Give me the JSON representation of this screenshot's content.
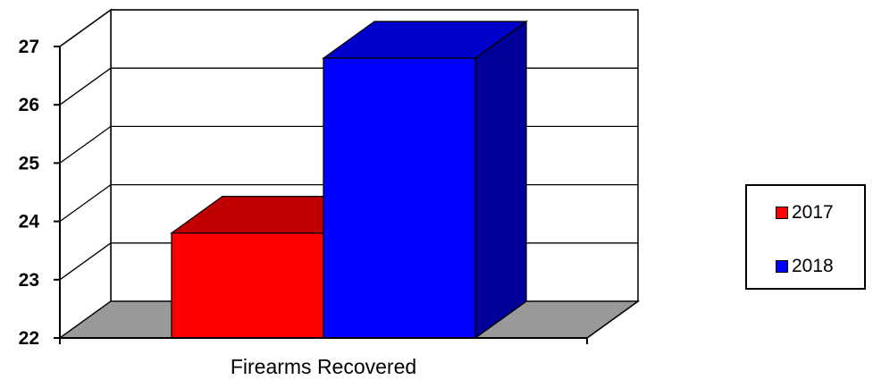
{
  "chart_data": {
    "type": "bar",
    "style": "3d-clustered-column",
    "categories": [
      "Firearms Recovered"
    ],
    "series": [
      {
        "name": "2017",
        "values": [
          23.8
        ],
        "color": "#ff0000",
        "top_color": "#c00000"
      },
      {
        "name": "2018",
        "values": [
          26.8
        ],
        "color": "#0000ff",
        "side_color": "#000099",
        "top_color": "#0000cc"
      }
    ],
    "ylim": [
      22,
      27
    ],
    "yticks": [
      "22",
      "23",
      "24",
      "25",
      "26",
      "27"
    ],
    "grid": true,
    "floor_color": "#999999",
    "legend_position": "right",
    "title": "",
    "xlabel": "",
    "ylabel": ""
  }
}
